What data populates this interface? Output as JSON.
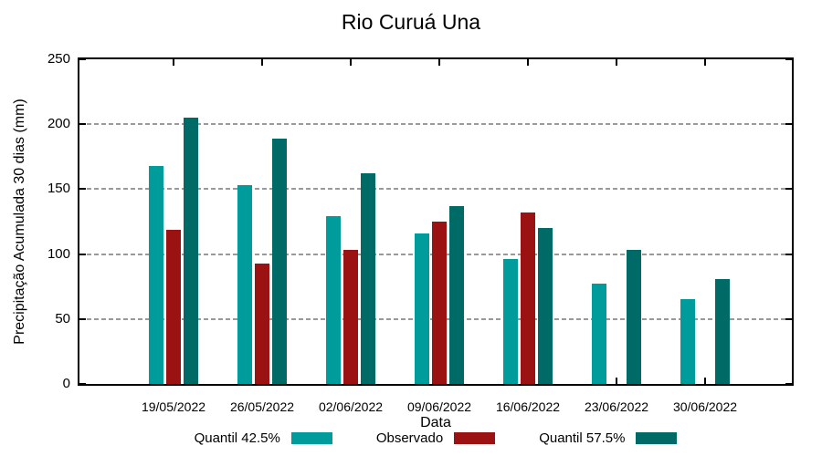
{
  "title": "Rio Curuá Una",
  "chart_data": {
    "type": "bar",
    "title": "Rio Curuá Una",
    "xlabel": "Data",
    "ylabel": "Precipitação Acumulada 30 dias (mm)",
    "ylim": [
      0,
      250
    ],
    "yticks": [
      0,
      50,
      100,
      150,
      200,
      250
    ],
    "grid": true,
    "legend_position": "bottom",
    "categories": [
      "19/05/2022",
      "26/05/2022",
      "02/06/2022",
      "09/06/2022",
      "16/06/2022",
      "23/06/2022",
      "30/06/2022"
    ],
    "series": [
      {
        "name": "Quantil 42.5%",
        "color": "#009b9b",
        "values": [
          168,
          153,
          129,
          116,
          96,
          77,
          65
        ]
      },
      {
        "name": "Observado",
        "color": "#9a1212",
        "values": [
          119,
          93,
          103,
          125,
          132,
          null,
          null
        ]
      },
      {
        "name": "Quantil 57.5%",
        "color": "#006b66",
        "values": [
          205,
          189,
          162,
          137,
          120,
          103,
          81
        ]
      }
    ]
  },
  "colors": {
    "axis": "#000000",
    "grid": "#999999",
    "background": "#ffffff"
  }
}
